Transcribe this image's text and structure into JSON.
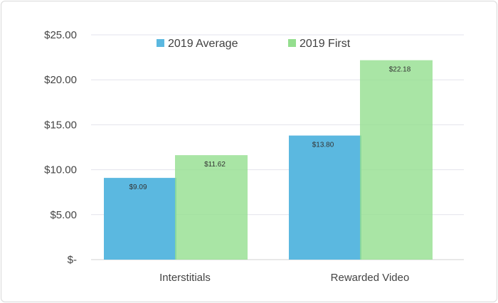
{
  "chart_data": {
    "type": "bar",
    "title": "",
    "xlabel": "",
    "ylabel": "",
    "categories": [
      "Interstitials",
      "Rewarded Video"
    ],
    "series": [
      {
        "name": "2019 Average",
        "values": [
          9.09,
          13.8
        ],
        "labels": [
          "$9.09",
          "$13.80"
        ],
        "color": "#5bb8e0"
      },
      {
        "name": "2019 First",
        "values": [
          11.62,
          22.18
        ],
        "labels": [
          "$11.62",
          "$22.18"
        ],
        "color": "#94de8e"
      }
    ],
    "ylim": [
      0,
      25
    ],
    "y_ticks": [
      0,
      5,
      10,
      15,
      20,
      25
    ],
    "y_tick_labels": [
      "$-",
      "$5.00",
      "$10.00",
      "$15.00",
      "$20.00",
      "$25.00"
    ],
    "grid": true,
    "legend_position": "top-center",
    "overlapping_bars": true
  }
}
